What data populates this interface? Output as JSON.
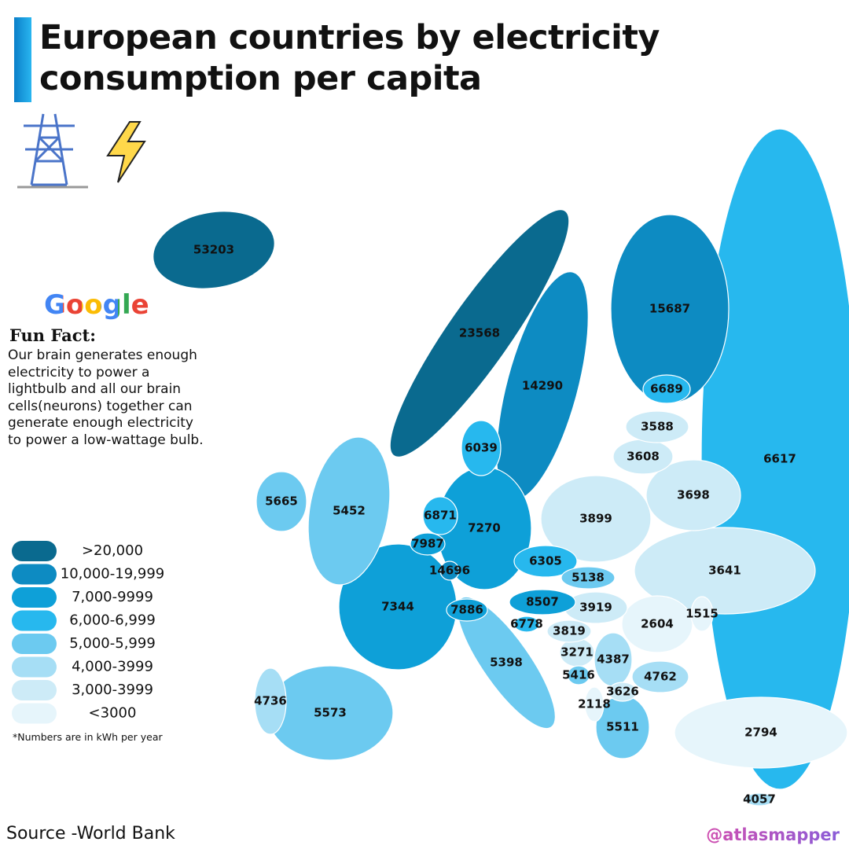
{
  "header": {
    "title": "European countries by electricity consumption per capita"
  },
  "fun_fact": {
    "brand": "Google",
    "title": "Fun Fact:",
    "text": "Our brain generates enough electricity to power a lightbulb and all our brain cells(neurons) together can generate enough electricity to power a low-wattage bulb."
  },
  "legend": {
    "items": [
      {
        "label": ">20,000",
        "color": "#0a6a8f"
      },
      {
        "label": "10,000-19,999",
        "color": "#0d8bc2"
      },
      {
        "label": "7,000-9999",
        "color": "#0ea0d8"
      },
      {
        "label": "6,000-6,999",
        "color": "#27b8ee"
      },
      {
        "label": "5,000-5,999",
        "color": "#6ccaf0"
      },
      {
        "label": "4,000-3999",
        "color": "#a6def5"
      },
      {
        "label": "3,000-3999",
        "color": "#cdebf7"
      },
      {
        "label": "<3000",
        "color": "#e6f5fb"
      }
    ],
    "note": "*Numbers are in kWh per year"
  },
  "map": {
    "regions": [
      {
        "value": 53203,
        "color": "#0a6a8f"
      },
      {
        "value": 23568,
        "color": "#0a6a8f"
      },
      {
        "value": 14290,
        "color": "#0d8bc2"
      },
      {
        "value": 15687,
        "color": "#0d8bc2"
      },
      {
        "value": 6689,
        "color": "#27b8ee"
      },
      {
        "value": 3588,
        "color": "#cdebf7"
      },
      {
        "value": 3608,
        "color": "#cdebf7"
      },
      {
        "value": 6617,
        "color": "#27b8ee"
      },
      {
        "value": 6039,
        "color": "#27b8ee"
      },
      {
        "value": 5665,
        "color": "#6ccaf0"
      },
      {
        "value": 5452,
        "color": "#6ccaf0"
      },
      {
        "value": 6871,
        "color": "#27b8ee"
      },
      {
        "value": 7270,
        "color": "#0ea0d8"
      },
      {
        "value": 3899,
        "color": "#cdebf7"
      },
      {
        "value": 3698,
        "color": "#cdebf7"
      },
      {
        "value": 7987,
        "color": "#0ea0d8"
      },
      {
        "value": 14696,
        "color": "#0d8bc2"
      },
      {
        "value": 6305,
        "color": "#27b8ee"
      },
      {
        "value": 5138,
        "color": "#6ccaf0"
      },
      {
        "value": 3641,
        "color": "#cdebf7"
      },
      {
        "value": 7344,
        "color": "#0ea0d8"
      },
      {
        "value": 7886,
        "color": "#0ea0d8"
      },
      {
        "value": 8507,
        "color": "#0ea0d8"
      },
      {
        "value": 3919,
        "color": "#cdebf7"
      },
      {
        "value": 2604,
        "color": "#e6f5fb"
      },
      {
        "value": 1515,
        "color": "#e6f5fb"
      },
      {
        "value": 6778,
        "color": "#27b8ee"
      },
      {
        "value": 3819,
        "color": "#cdebf7"
      },
      {
        "value": 3271,
        "color": "#cdebf7"
      },
      {
        "value": 4387,
        "color": "#a6def5"
      },
      {
        "value": 5398,
        "color": "#6ccaf0"
      },
      {
        "value": 5416,
        "color": "#6ccaf0"
      },
      {
        "value": 4762,
        "color": "#a6def5"
      },
      {
        "value": 3626,
        "color": "#cdebf7"
      },
      {
        "value": 2118,
        "color": "#e6f5fb"
      },
      {
        "value": 5511,
        "color": "#6ccaf0"
      },
      {
        "value": 2794,
        "color": "#e6f5fb"
      },
      {
        "value": 4736,
        "color": "#a6def5"
      },
      {
        "value": 5573,
        "color": "#6ccaf0"
      },
      {
        "value": 4057,
        "color": "#a6def5"
      }
    ]
  },
  "footer": {
    "source": "Source -World Bank",
    "handle": "@atlasmapper"
  }
}
